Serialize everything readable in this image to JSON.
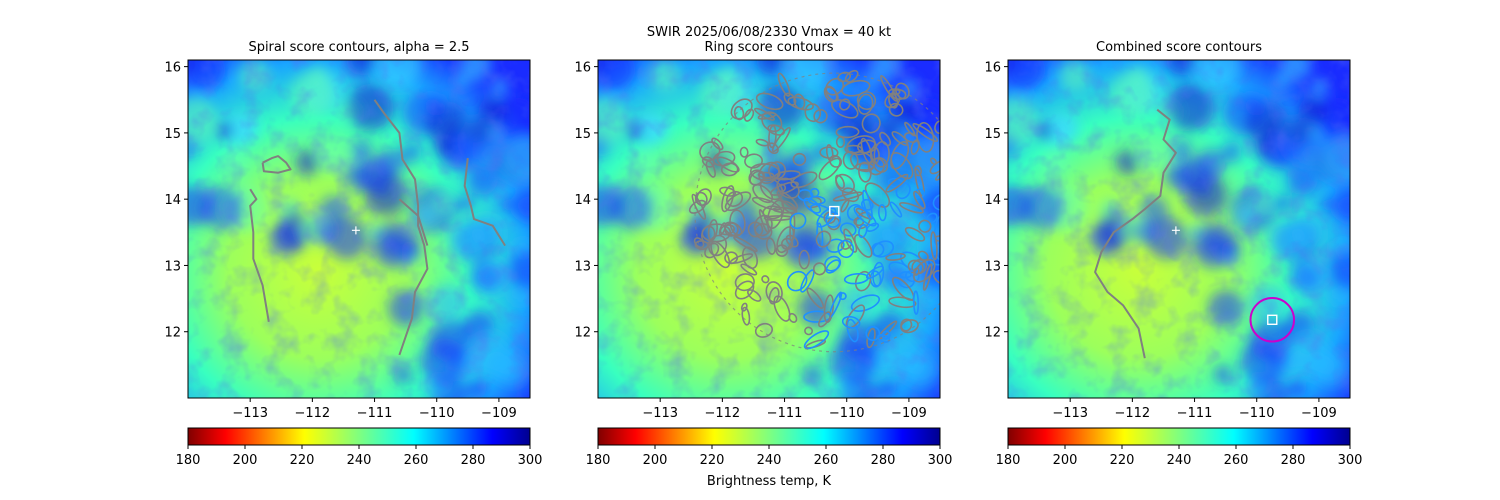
{
  "figure": {
    "suptitle_line1": "SWIR  2025/06/08/2330    Vmax = 40 kt",
    "colorbar_label": "Brightness temp, K"
  },
  "chart_data": [
    {
      "type": "heatmap",
      "title": "Spiral score contours, alpha =  2.5",
      "xlim": [
        -114.0,
        -108.5
      ],
      "ylim": [
        11.0,
        16.1
      ],
      "xticks": [
        -113,
        -112,
        -111,
        -110,
        -109
      ],
      "yticks": [
        12,
        13,
        14,
        15,
        16
      ],
      "colorbar": {
        "range": [
          180,
          300
        ],
        "ticks": [
          180,
          200,
          220,
          240,
          260,
          280,
          300
        ],
        "cmap": "jet_r"
      },
      "markers": [
        {
          "kind": "plus",
          "lon": -111.3,
          "lat": 13.53
        }
      ],
      "contours": [
        [
          [
            -112.8,
            14.55
          ],
          [
            -112.65,
            14.62
          ],
          [
            -112.55,
            14.65
          ],
          [
            -112.42,
            14.55
          ],
          [
            -112.35,
            14.45
          ],
          [
            -112.55,
            14.4
          ],
          [
            -112.78,
            14.42
          ],
          [
            -112.8,
            14.55
          ]
        ],
        [
          [
            -113.0,
            14.15
          ],
          [
            -112.9,
            14.0
          ],
          [
            -113.0,
            13.9
          ],
          [
            -112.95,
            13.5
          ],
          [
            -112.95,
            13.1
          ],
          [
            -112.8,
            12.7
          ],
          [
            -112.7,
            12.15
          ]
        ],
        [
          [
            -111.0,
            15.5
          ],
          [
            -110.85,
            15.3
          ],
          [
            -110.6,
            15.0
          ],
          [
            -110.55,
            14.6
          ],
          [
            -110.35,
            14.3
          ],
          [
            -110.3,
            13.9
          ],
          [
            -110.3,
            13.6
          ],
          [
            -110.2,
            13.3
          ],
          [
            -110.15,
            12.95
          ],
          [
            -110.35,
            12.6
          ],
          [
            -110.4,
            12.2
          ],
          [
            -110.6,
            11.65
          ]
        ],
        [
          [
            -109.5,
            14.62
          ],
          [
            -109.55,
            14.2
          ],
          [
            -109.45,
            13.9
          ],
          [
            -109.4,
            13.7
          ],
          [
            -109.1,
            13.6
          ],
          [
            -108.9,
            13.3
          ]
        ],
        [
          [
            -110.6,
            14.0
          ],
          [
            -110.3,
            13.75
          ],
          [
            -110.15,
            13.3
          ]
        ]
      ],
      "contour_colors": [
        "#808080"
      ],
      "boxes": [],
      "circles": []
    },
    {
      "type": "heatmap",
      "title": "Ring score contours",
      "xlim": [
        -114.0,
        -108.5
      ],
      "ylim": [
        11.0,
        16.1
      ],
      "xticks": [
        -113,
        -112,
        -111,
        -110,
        -109
      ],
      "yticks": [
        12,
        13,
        14,
        15,
        16
      ],
      "colorbar": {
        "range": [
          180,
          300
        ],
        "ticks": [
          180,
          200,
          220,
          240,
          260,
          280,
          300
        ],
        "cmap": "jet_r"
      },
      "markers": [],
      "ring": {
        "center_lon": -110.2,
        "center_lat": 13.8,
        "radius_deg": 2.0
      },
      "boxes": [
        {
          "lon": -110.2,
          "lat": 13.82
        }
      ],
      "circles": []
    },
    {
      "type": "heatmap",
      "title": "Combined score contours",
      "xlim": [
        -114.0,
        -108.5
      ],
      "ylim": [
        11.0,
        16.1
      ],
      "xticks": [
        -113,
        -112,
        -111,
        -110,
        -109
      ],
      "yticks": [
        12,
        13,
        14,
        15,
        16
      ],
      "colorbar": {
        "range": [
          180,
          300
        ],
        "ticks": [
          180,
          200,
          220,
          240,
          260,
          280,
          300
        ],
        "cmap": "jet_r"
      },
      "markers": [
        {
          "kind": "plus",
          "lon": -111.3,
          "lat": 13.53
        }
      ],
      "contours": [
        [
          [
            -111.6,
            15.35
          ],
          [
            -111.4,
            15.2
          ],
          [
            -111.5,
            14.9
          ],
          [
            -111.3,
            14.7
          ],
          [
            -111.5,
            14.4
          ],
          [
            -111.55,
            14.05
          ],
          [
            -111.8,
            13.85
          ],
          [
            -112.0,
            13.7
          ],
          [
            -112.3,
            13.5
          ],
          [
            -112.5,
            13.2
          ],
          [
            -112.6,
            12.9
          ],
          [
            -112.4,
            12.6
          ],
          [
            -112.15,
            12.4
          ],
          [
            -111.9,
            12.05
          ],
          [
            -111.8,
            11.6
          ]
        ]
      ],
      "contour_colors": [
        "#808080"
      ],
      "boxes": [
        {
          "lon": -109.75,
          "lat": 12.18
        }
      ],
      "circles": [
        {
          "lon": -109.75,
          "lat": 12.18,
          "radius_deg": 0.35,
          "color": "#cc00cc"
        }
      ]
    }
  ]
}
